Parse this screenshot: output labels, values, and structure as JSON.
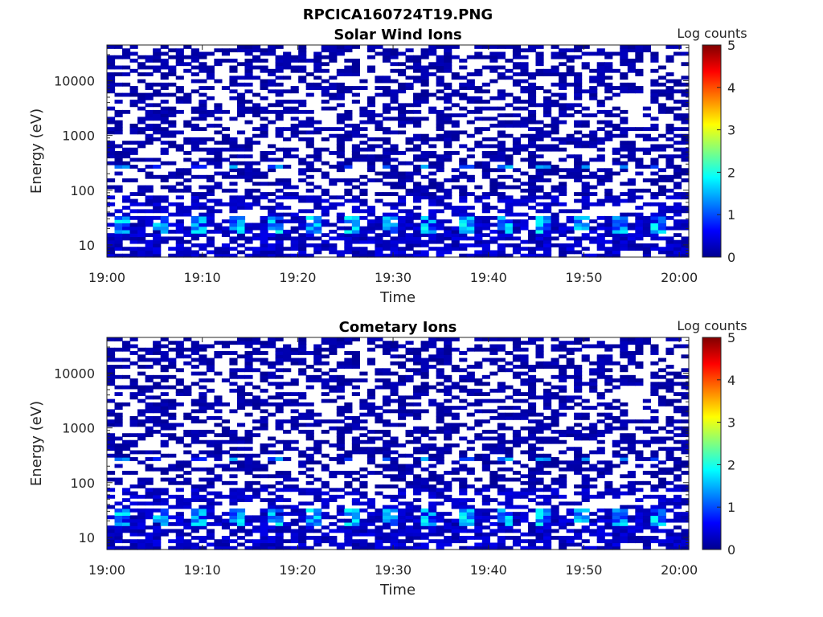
{
  "figure": {
    "title": "RPCICA160724T19.PNG"
  },
  "chart_data": [
    {
      "type": "heatmap",
      "title": "Solar Wind Ions",
      "xlabel": "Time",
      "ylabel": "Energy (eV)",
      "x_ticks": [
        "19:00",
        "19:10",
        "19:20",
        "19:30",
        "19:40",
        "19:50",
        "20:00"
      ],
      "y_ticks": [
        "10",
        "100",
        "1000",
        "10000"
      ],
      "y_scale": "log",
      "ylim": [
        6,
        45000
      ],
      "xlim": [
        "19:00",
        "20:01"
      ],
      "colorbar": {
        "label": "Log counts",
        "ticks": [
          "0",
          "1",
          "2",
          "3",
          "4",
          "5"
        ],
        "range": [
          0,
          5
        ],
        "colormap": "jet"
      },
      "seed": 17
    },
    {
      "type": "heatmap",
      "title": "Cometary Ions",
      "xlabel": "Time",
      "ylabel": "Energy (eV)",
      "x_ticks": [
        "19:00",
        "19:10",
        "19:20",
        "19:30",
        "19:40",
        "19:50",
        "20:00"
      ],
      "y_ticks": [
        "10",
        "100",
        "1000",
        "10000"
      ],
      "y_scale": "log",
      "ylim": [
        6,
        45000
      ],
      "xlim": [
        "19:00",
        "20:01"
      ],
      "colorbar": {
        "label": "Log counts",
        "ticks": [
          "0",
          "1",
          "2",
          "3",
          "4",
          "5"
        ],
        "range": [
          0,
          5
        ],
        "colormap": "jet"
      },
      "seed": 17
    }
  ]
}
